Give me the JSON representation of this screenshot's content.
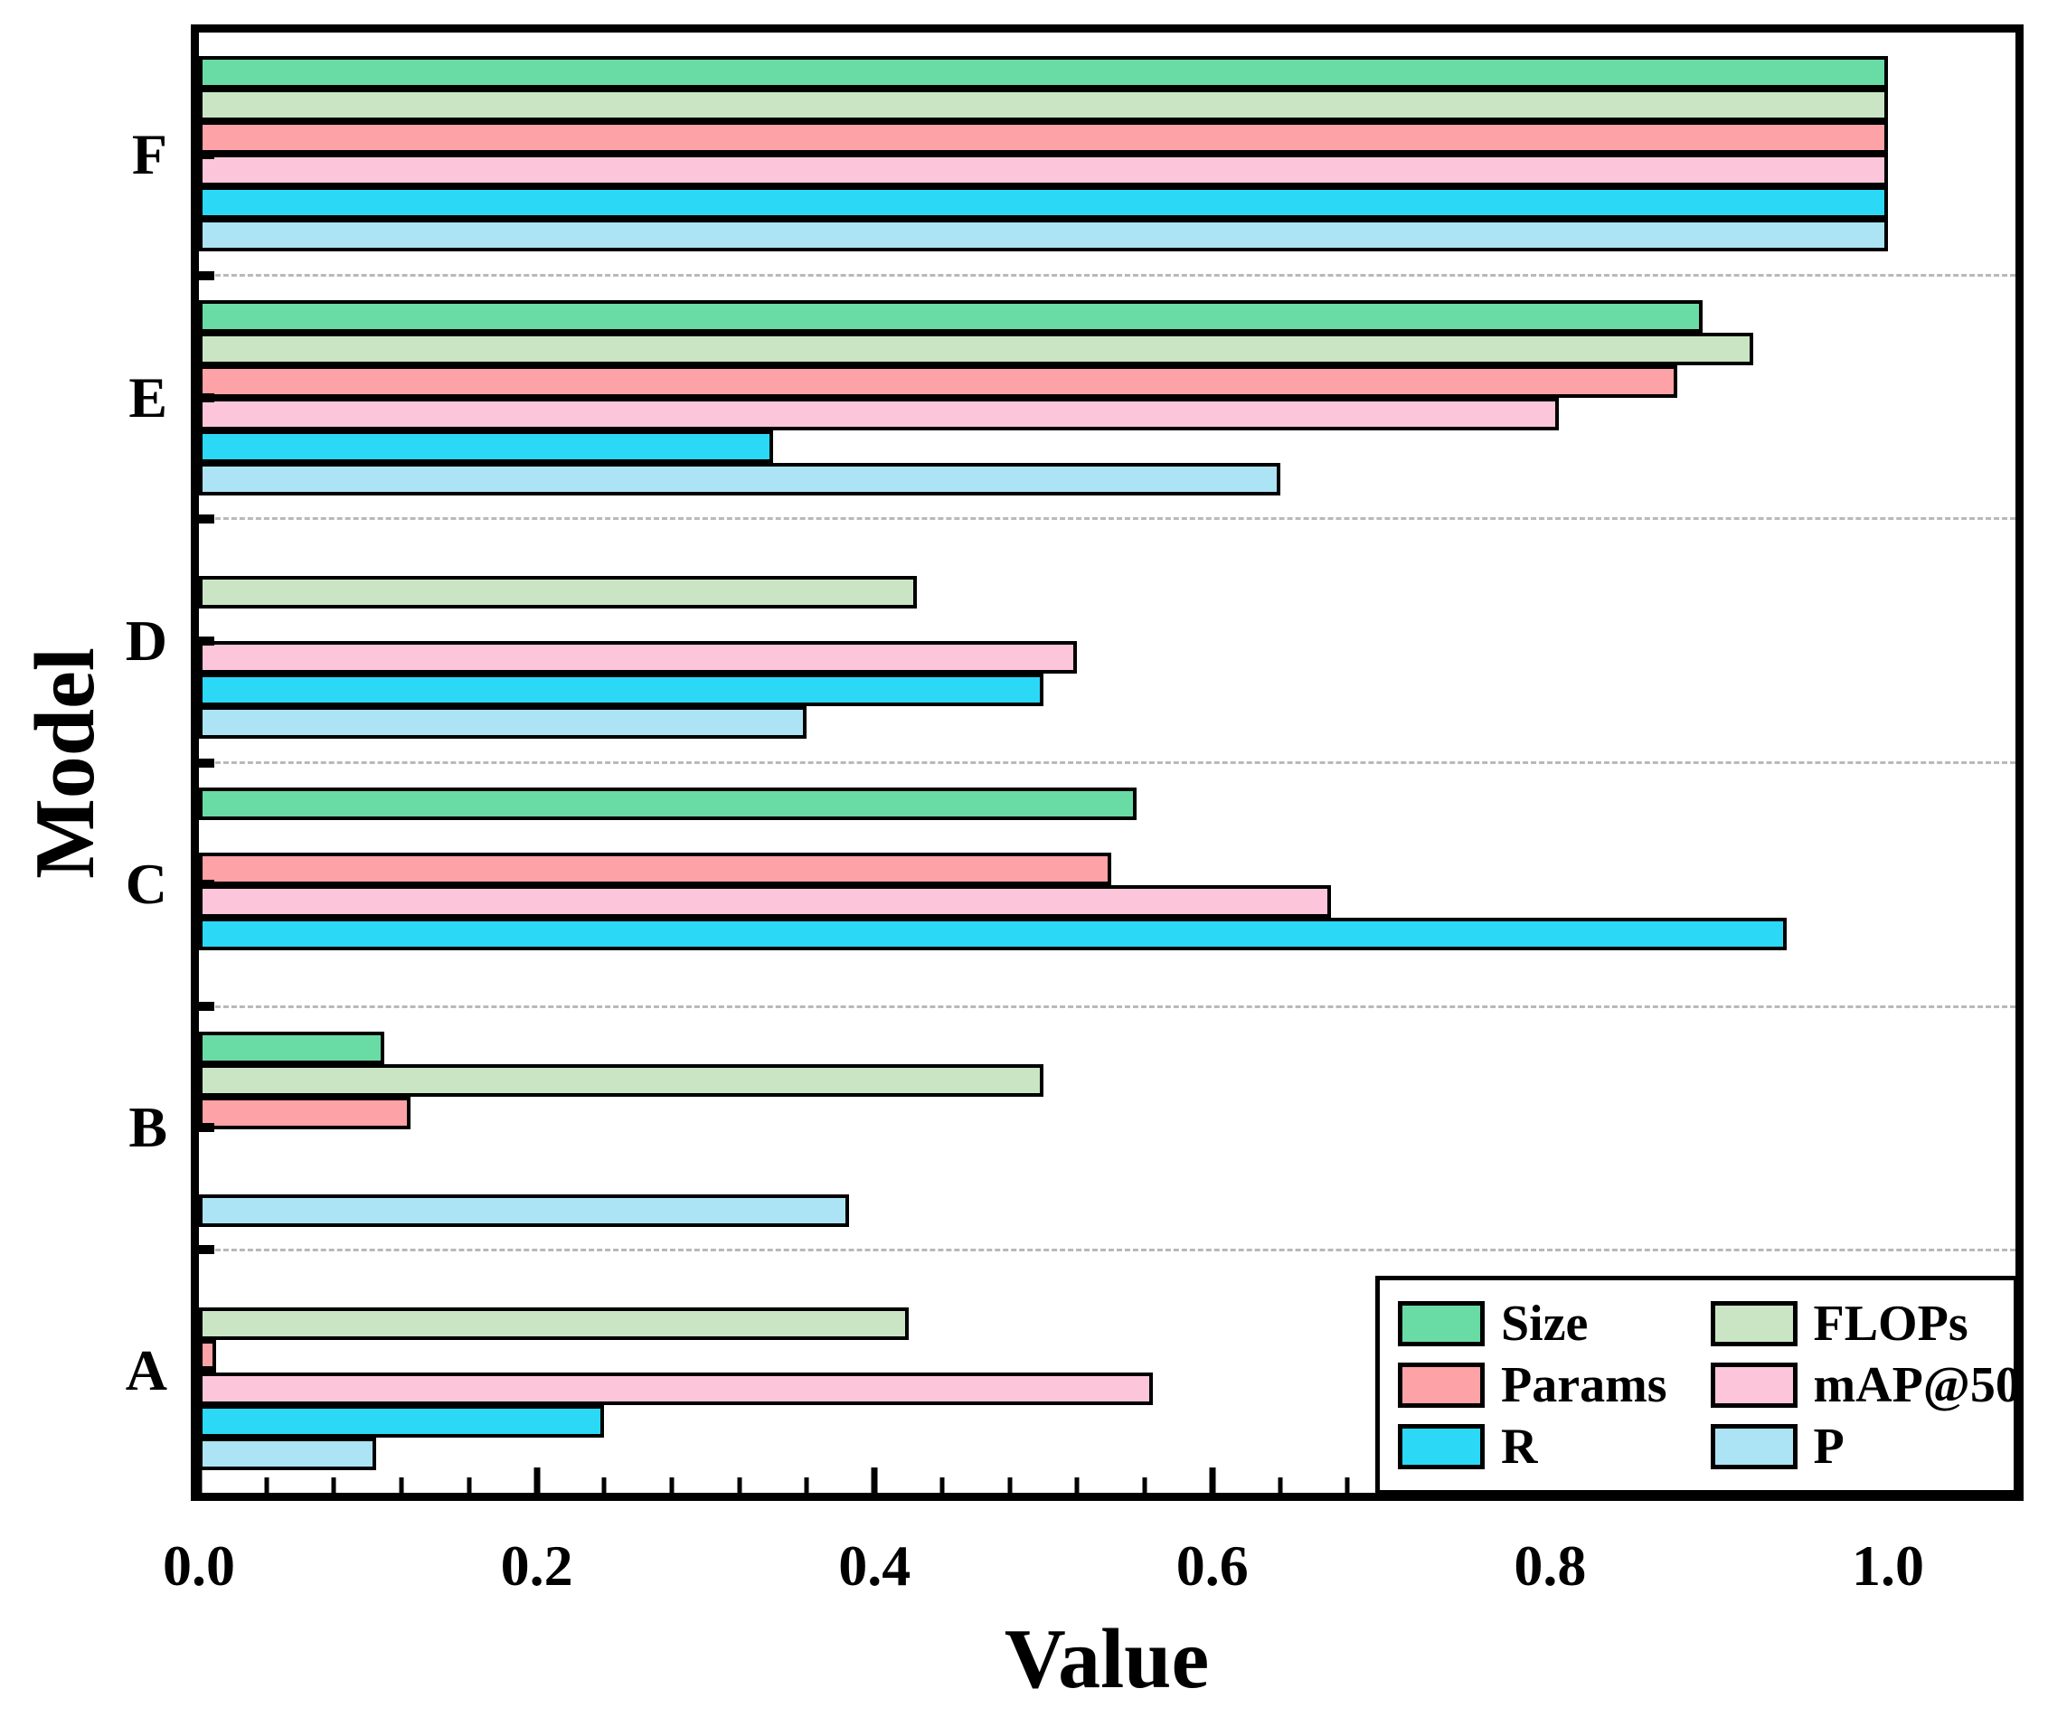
{
  "chart_data": {
    "type": "bar",
    "orientation": "horizontal",
    "title": "",
    "xlabel": "Value",
    "ylabel": "Model",
    "categories": [
      "A",
      "B",
      "C",
      "D",
      "E",
      "F"
    ],
    "display_order_top_to_bottom": [
      "F",
      "E",
      "D",
      "C",
      "B",
      "A"
    ],
    "series": [
      {
        "name": "Size",
        "color": "#69DBA5",
        "values": [
          0,
          0.11,
          0.555,
          0,
          0.89,
          1.0
        ]
      },
      {
        "name": "FLOPs",
        "color": "#C9E5C3",
        "values": [
          0.42,
          0.5,
          0,
          0.425,
          0.92,
          1.0
        ]
      },
      {
        "name": "Params",
        "color": "#FDA2A6",
        "values": [
          0.01,
          0.125,
          0.54,
          0,
          0.875,
          1.0
        ]
      },
      {
        "name": "mAP@50",
        "color": "#FCC5D9",
        "values": [
          0.565,
          0,
          0.67,
          0.52,
          0.805,
          1.0
        ]
      },
      {
        "name": "R",
        "color": "#2BD9F7",
        "values": [
          0.24,
          0,
          0.94,
          0.5,
          0.34,
          1.0
        ]
      },
      {
        "name": "P",
        "color": "#ACE3F5",
        "values": [
          0.105,
          0.385,
          0,
          0.36,
          0.64,
          1.0
        ]
      }
    ],
    "xlim": [
      0,
      1.08
    ],
    "xticks": [
      0,
      0.2,
      0.4,
      0.6,
      0.8,
      1.0
    ],
    "xtick_labels": [
      "0.0",
      "0.2",
      "0.4",
      "0.6",
      "0.8",
      "1.0"
    ],
    "minor_xtick_step": 0.04,
    "bar_edge_color": "#000000",
    "grid": {
      "group_separators": "dashed",
      "color": "#b9b9b9"
    },
    "legend": {
      "position": "lower right",
      "columns": 2,
      "order": [
        "Size",
        "FLOPs",
        "Params",
        "mAP@50",
        "R",
        "P"
      ]
    }
  }
}
